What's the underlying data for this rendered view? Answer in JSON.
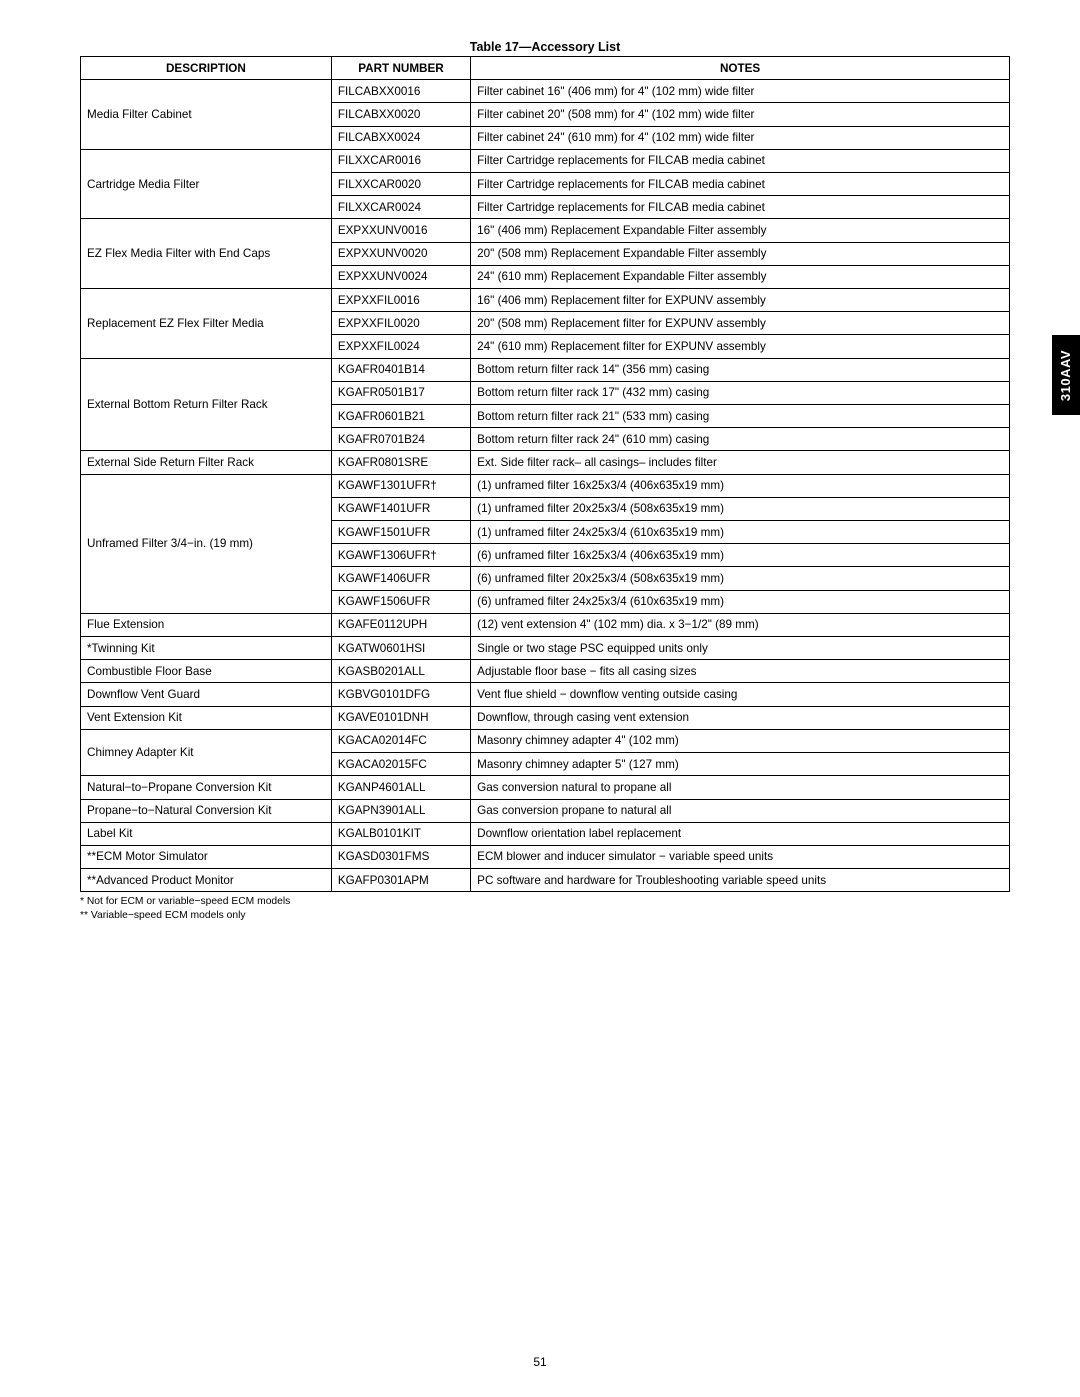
{
  "sideTab": "310AAV",
  "caption": "Table 17—Accessory List",
  "headers": {
    "c1": "DESCRIPTION",
    "c2": "PART NUMBER",
    "c3": "NOTES"
  },
  "groups": [
    {
      "desc": "Media Filter Cabinet",
      "rows": [
        {
          "part": "FILCABXX0016",
          "note": "Filter cabinet 16\" (406 mm) for 4\" (102 mm) wide filter"
        },
        {
          "part": "FILCABXX0020",
          "note": "Filter cabinet 20\" (508 mm) for 4\" (102 mm) wide filter"
        },
        {
          "part": "FILCABXX0024",
          "note": "Filter cabinet 24\" (610 mm) for 4\" (102 mm) wide filter"
        }
      ]
    },
    {
      "desc": "Cartridge Media Filter",
      "rows": [
        {
          "part": "FILXXCAR0016",
          "note": "Filter Cartridge replacements for FILCAB media cabinet"
        },
        {
          "part": "FILXXCAR0020",
          "note": "Filter Cartridge replacements for FILCAB media cabinet"
        },
        {
          "part": "FILXXCAR0024",
          "note": "Filter Cartridge replacements for FILCAB media cabinet"
        }
      ]
    },
    {
      "desc": "EZ Flex Media Filter with End Caps",
      "rows": [
        {
          "part": "EXPXXUNV0016",
          "note": "16\" (406 mm) Replacement Expandable Filter assembly"
        },
        {
          "part": "EXPXXUNV0020",
          "note": "20\" (508 mm) Replacement Expandable Filter assembly"
        },
        {
          "part": "EXPXXUNV0024",
          "note": "24\" (610 mm) Replacement Expandable Filter assembly"
        }
      ]
    },
    {
      "desc": "Replacement EZ Flex Filter Media",
      "rows": [
        {
          "part": "EXPXXFIL0016",
          "note": "16\" (406 mm) Replacement filter for EXPUNV assembly"
        },
        {
          "part": "EXPXXFIL0020",
          "note": "20\" (508 mm) Replacement filter for EXPUNV assembly"
        },
        {
          "part": "EXPXXFIL0024",
          "note": "24\" (610 mm) Replacement filter for EXPUNV assembly"
        }
      ]
    },
    {
      "desc": "External Bottom Return Filter Rack",
      "rows": [
        {
          "part": "KGAFR0401B14",
          "note": "Bottom return filter rack 14\" (356 mm) casing"
        },
        {
          "part": "KGAFR0501B17",
          "note": "Bottom return filter rack 17\" (432 mm) casing"
        },
        {
          "part": "KGAFR0601B21",
          "note": "Bottom return filter rack 21\" (533 mm) casing"
        },
        {
          "part": "KGAFR0701B24",
          "note": "Bottom return filter rack 24\" (610 mm) casing"
        }
      ]
    },
    {
      "desc": "External Side Return Filter Rack",
      "rows": [
        {
          "part": "KGAFR0801SRE",
          "note": "Ext. Side filter rack– all casings– includes filter"
        }
      ]
    },
    {
      "desc": "Unframed Filter 3/4−in. (19 mm)",
      "rows": [
        {
          "part": "KGAWF1301UFR†",
          "note": "(1) unframed filter 16x25x3/4 (406x635x19 mm)"
        },
        {
          "part": "KGAWF1401UFR",
          "note": "(1) unframed filter 20x25x3/4 (508x635x19 mm)"
        },
        {
          "part": "KGAWF1501UFR",
          "note": "(1) unframed filter 24x25x3/4 (610x635x19 mm)"
        },
        {
          "part": "KGAWF1306UFR†",
          "note": "(6) unframed filter 16x25x3/4 (406x635x19 mm)"
        },
        {
          "part": "KGAWF1406UFR",
          "note": "(6) unframed filter 20x25x3/4 (508x635x19 mm)"
        },
        {
          "part": "KGAWF1506UFR",
          "note": "(6) unframed filter 24x25x3/4 (610x635x19 mm)"
        }
      ]
    },
    {
      "desc": "Flue Extension",
      "rows": [
        {
          "part": "KGAFE0112UPH",
          "note": "(12) vent extension 4\" (102 mm) dia. x 3−1/2\" (89 mm)"
        }
      ]
    },
    {
      "desc": "*Twinning Kit",
      "rows": [
        {
          "part": "KGATW0601HSI",
          "note": "Single or two stage PSC equipped units only"
        }
      ]
    },
    {
      "desc": "Combustible Floor Base",
      "rows": [
        {
          "part": "KGASB0201ALL",
          "note": "Adjustable floor base − fits all casing sizes"
        }
      ]
    },
    {
      "desc": "Downflow Vent Guard",
      "rows": [
        {
          "part": "KGBVG0101DFG",
          "note": "Vent flue shield − downflow venting outside casing"
        }
      ]
    },
    {
      "desc": "Vent Extension Kit",
      "rows": [
        {
          "part": "KGAVE0101DNH",
          "note": "Downflow, through casing vent extension"
        }
      ]
    },
    {
      "desc": "Chimney Adapter Kit",
      "rows": [
        {
          "part": "KGACA02014FC",
          "note": "Masonry chimney adapter 4\" (102 mm)"
        },
        {
          "part": "KGACA02015FC",
          "note": "Masonry chimney adapter 5\" (127 mm)"
        }
      ]
    },
    {
      "desc": "Natural−to−Propane Conversion Kit",
      "rows": [
        {
          "part": "KGANP4601ALL",
          "note": "Gas conversion natural to propane all"
        }
      ]
    },
    {
      "desc": "Propane−to−Natural Conversion Kit",
      "rows": [
        {
          "part": "KGAPN3901ALL",
          "note": "Gas conversion propane to natural all"
        }
      ]
    },
    {
      "desc": "Label Kit",
      "rows": [
        {
          "part": "KGALB0101KIT",
          "note": "Downflow orientation label replacement"
        }
      ]
    },
    {
      "desc": "**ECM Motor Simulator",
      "rows": [
        {
          "part": "KGASD0301FMS",
          "note": "ECM blower and inducer simulator − variable speed units"
        }
      ]
    },
    {
      "desc": "**Advanced Product Monitor",
      "rows": [
        {
          "part": "KGAFP0301APM",
          "note": "PC software and hardware  for Troubleshooting variable speed units"
        }
      ]
    }
  ],
  "footnotes": [
    "*  Not for ECM or variable−speed ECM models",
    "** Variable−speed ECM models only"
  ],
  "pageNum": "51"
}
